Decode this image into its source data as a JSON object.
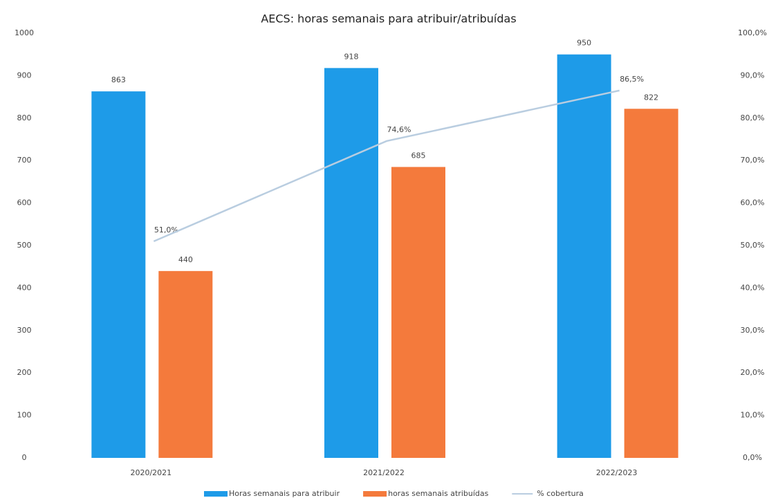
{
  "chart_data": {
    "type": "bar",
    "title": "AECS: horas semanais para atribuir/atribuídas",
    "categories": [
      "2020/2021",
      "2021/2022",
      "2022/2023"
    ],
    "series": [
      {
        "name": "Horas semanais para atribuir",
        "color": "#1e9be8",
        "values": [
          863,
          918,
          950
        ]
      },
      {
        "name": "horas semanais atribuídas",
        "color": "#f47a3c",
        "values": [
          440,
          685,
          822
        ]
      },
      {
        "name": "% cobertura",
        "color": "#b9cde0",
        "type": "line",
        "axis": "y2",
        "values": [
          51.0,
          74.6,
          86.5
        ],
        "value_labels": [
          "51,0%",
          "74,6%",
          "86,5%"
        ]
      }
    ],
    "ylim": [
      0,
      1000
    ],
    "yticks": [
      0,
      100,
      200,
      300,
      400,
      500,
      600,
      700,
      800,
      900,
      1000
    ],
    "y2lim": [
      0,
      100
    ],
    "y2ticks": [
      {
        "value": 0,
        "label": "0,0%"
      },
      {
        "value": 10,
        "label": "10,0%"
      },
      {
        "value": 20,
        "label": "20,0%"
      },
      {
        "value": 30,
        "label": "30,0%"
      },
      {
        "value": 40,
        "label": "40,0%"
      },
      {
        "value": 50,
        "label": "50,0%"
      },
      {
        "value": 60,
        "label": "60,0%"
      },
      {
        "value": 70,
        "label": "70,0%"
      },
      {
        "value": 80,
        "label": "80,0%"
      },
      {
        "value": 90,
        "label": "90,0%"
      },
      {
        "value": 100,
        "label": "100,0%"
      }
    ],
    "grid": false,
    "legend": "bottom"
  }
}
